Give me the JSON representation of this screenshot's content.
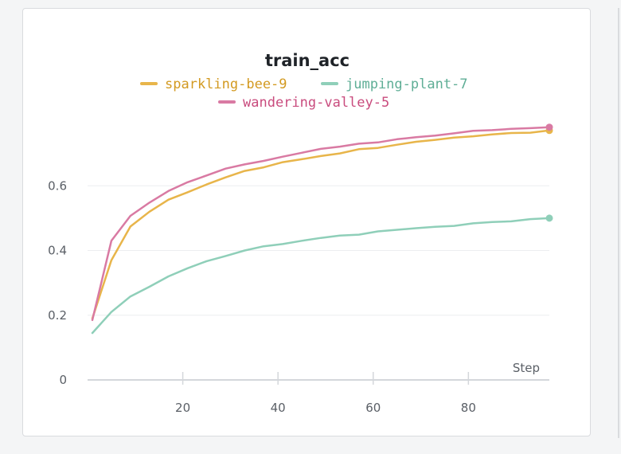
{
  "chart_data": {
    "type": "line",
    "title": "train_acc",
    "xlabel": "Step",
    "ylabel": "",
    "xlim": [
      0,
      97
    ],
    "ylim": [
      0,
      0.8
    ],
    "xticks": [
      20,
      40,
      60,
      80
    ],
    "yticks": [
      0,
      0.2,
      0.4,
      0.6
    ],
    "grid": true,
    "legend_position": "top",
    "series": [
      {
        "name": "sparkling-bee-9",
        "color": "#e8b54a",
        "x": [
          1,
          5,
          9,
          13,
          17,
          21,
          25,
          29,
          33,
          37,
          41,
          45,
          49,
          53,
          57,
          61,
          65,
          69,
          73,
          77,
          81,
          85,
          89,
          93,
          97
        ],
        "y": [
          0.19,
          0.37,
          0.474,
          0.52,
          0.557,
          0.58,
          0.604,
          0.626,
          0.646,
          0.657,
          0.673,
          0.682,
          0.692,
          0.7,
          0.713,
          0.717,
          0.727,
          0.736,
          0.742,
          0.749,
          0.753,
          0.759,
          0.763,
          0.764,
          0.771
        ]
      },
      {
        "name": "jumping-plant-7",
        "color": "#8fcfb9",
        "x": [
          1,
          5,
          9,
          13,
          17,
          21,
          25,
          29,
          33,
          37,
          41,
          45,
          49,
          53,
          57,
          61,
          65,
          69,
          73,
          77,
          81,
          85,
          89,
          93,
          97
        ],
        "y": [
          0.145,
          0.21,
          0.258,
          0.288,
          0.32,
          0.345,
          0.367,
          0.383,
          0.4,
          0.413,
          0.42,
          0.43,
          0.439,
          0.446,
          0.449,
          0.459,
          0.464,
          0.469,
          0.473,
          0.476,
          0.484,
          0.488,
          0.49,
          0.497,
          0.5
        ]
      },
      {
        "name": "wandering-valley-5",
        "color": "#d97aa3",
        "x": [
          1,
          5,
          9,
          13,
          17,
          21,
          25,
          29,
          33,
          37,
          41,
          45,
          49,
          53,
          57,
          61,
          65,
          69,
          73,
          77,
          81,
          85,
          89,
          93,
          97
        ],
        "y": [
          0.185,
          0.43,
          0.507,
          0.548,
          0.584,
          0.611,
          0.632,
          0.653,
          0.666,
          0.677,
          0.69,
          0.702,
          0.714,
          0.721,
          0.73,
          0.734,
          0.744,
          0.75,
          0.755,
          0.762,
          0.77,
          0.772,
          0.776,
          0.778,
          0.781
        ]
      }
    ]
  }
}
